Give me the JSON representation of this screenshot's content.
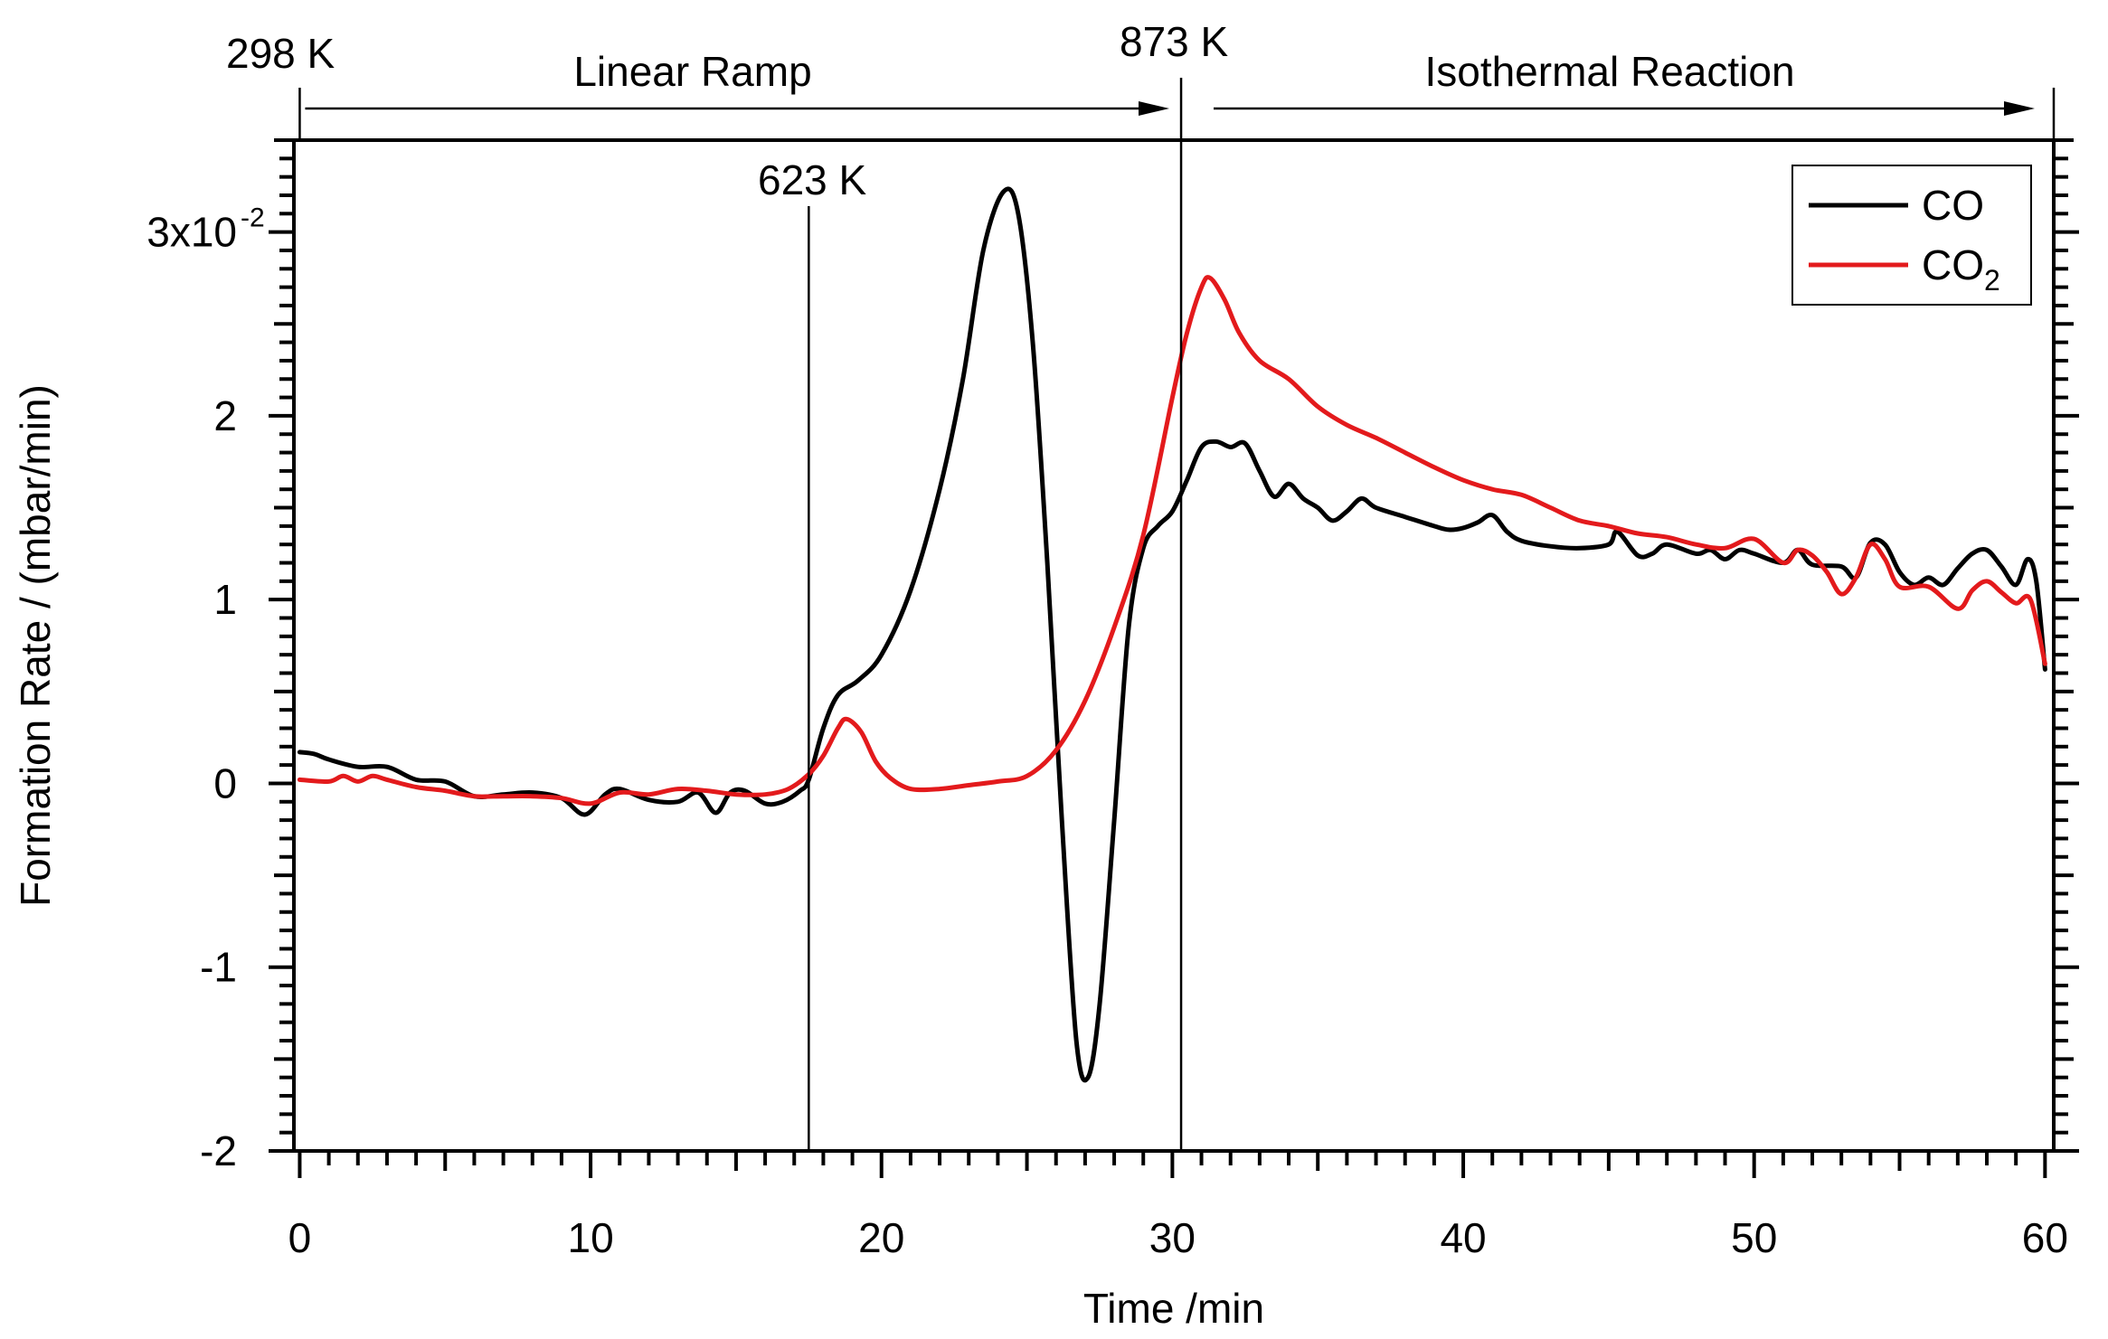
{
  "chart_data": {
    "type": "line",
    "xlabel": "Time /min",
    "ylabel": "Formation Rate / (mbar/min)",
    "xlim": [
      -0.2,
      60.3
    ],
    "ylim": [
      -0.02,
      0.035
    ],
    "x_ticks": [
      0,
      10,
      20,
      30,
      40,
      50,
      60
    ],
    "x_tick_labels": [
      "0",
      "10",
      "20",
      "30",
      "40",
      "50",
      "60"
    ],
    "y_ticks": [
      -0.02,
      -0.01,
      0,
      0.01,
      0.02,
      0.03
    ],
    "y_tick_labels": [
      "-2",
      "-1",
      "0",
      "1",
      "2",
      "3x10"
    ],
    "y_exponent": "-2",
    "annotations": {
      "start_temp": "298 K",
      "mid_temp": "623 K",
      "end_temp": "873 K",
      "ramp_label": "Linear Ramp",
      "iso_label": "Isothermal Reaction",
      "mid_time": 17.5,
      "end_time": 30.3
    },
    "legend": {
      "placement": "top-right",
      "entries": [
        {
          "name": "CO",
          "sub": "",
          "color": "#000000"
        },
        {
          "name": "CO",
          "sub": "2",
          "color": "#e31a1c"
        }
      ]
    },
    "series": [
      {
        "name": "CO",
        "color": "#000000",
        "points": [
          [
            0,
            0.0017
          ],
          [
            0.5,
            0.0016
          ],
          [
            1,
            0.0013
          ],
          [
            2,
            0.0009
          ],
          [
            3,
            0.0009
          ],
          [
            4,
            0.0002
          ],
          [
            5,
            0.0001
          ],
          [
            6,
            -0.0007
          ],
          [
            7,
            -0.0006
          ],
          [
            8,
            -0.0005
          ],
          [
            9,
            -0.0008
          ],
          [
            9.8,
            -0.0017
          ],
          [
            10.5,
            -0.0006
          ],
          [
            11,
            -0.0003
          ],
          [
            12,
            -0.0009
          ],
          [
            13,
            -0.001
          ],
          [
            13.7,
            -0.0005
          ],
          [
            14.3,
            -0.0016
          ],
          [
            14.8,
            -0.0005
          ],
          [
            15.3,
            -0.0004
          ],
          [
            16,
            -0.0011
          ],
          [
            16.6,
            -0.001
          ],
          [
            17.2,
            -0.0004
          ],
          [
            17.5,
            0.0002
          ],
          [
            18,
            0.003
          ],
          [
            18.5,
            0.0048
          ],
          [
            19.2,
            0.0056
          ],
          [
            20,
            0.007
          ],
          [
            21,
            0.0105
          ],
          [
            22,
            0.016
          ],
          [
            22.8,
            0.022
          ],
          [
            23.5,
            0.029
          ],
          [
            24.2,
            0.0322
          ],
          [
            24.7,
            0.031
          ],
          [
            25.2,
            0.024
          ],
          [
            25.7,
            0.012
          ],
          [
            26.2,
            -0.002
          ],
          [
            26.7,
            -0.014
          ],
          [
            27.1,
            -0.016
          ],
          [
            27.5,
            -0.012
          ],
          [
            28,
            -0.002
          ],
          [
            28.5,
            0.0085
          ],
          [
            29,
            0.0128
          ],
          [
            29.5,
            0.014
          ],
          [
            30,
            0.0148
          ],
          [
            30.5,
            0.0165
          ],
          [
            31,
            0.0183
          ],
          [
            31.5,
            0.0186
          ],
          [
            32,
            0.0183
          ],
          [
            32.5,
            0.0185
          ],
          [
            33,
            0.017
          ],
          [
            33.5,
            0.0156
          ],
          [
            34,
            0.0163
          ],
          [
            34.5,
            0.0155
          ],
          [
            35,
            0.015
          ],
          [
            35.5,
            0.0143
          ],
          [
            36,
            0.0148
          ],
          [
            36.5,
            0.0155
          ],
          [
            37,
            0.015
          ],
          [
            38,
            0.0145
          ],
          [
            39,
            0.014
          ],
          [
            39.5,
            0.0138
          ],
          [
            40,
            0.0139
          ],
          [
            40.5,
            0.0142
          ],
          [
            41,
            0.0146
          ],
          [
            41.5,
            0.0137
          ],
          [
            42,
            0.0132
          ],
          [
            43,
            0.0129
          ],
          [
            44,
            0.0128
          ],
          [
            45,
            0.013
          ],
          [
            45.3,
            0.0137
          ],
          [
            46,
            0.0124
          ],
          [
            46.5,
            0.0125
          ],
          [
            47,
            0.013
          ],
          [
            48,
            0.0125
          ],
          [
            48.5,
            0.0127
          ],
          [
            49,
            0.0122
          ],
          [
            49.5,
            0.0127
          ],
          [
            50,
            0.0125
          ],
          [
            51,
            0.012
          ],
          [
            51.5,
            0.0127
          ],
          [
            52,
            0.0119
          ],
          [
            53,
            0.0118
          ],
          [
            53.5,
            0.0112
          ],
          [
            54,
            0.0131
          ],
          [
            54.5,
            0.013
          ],
          [
            55,
            0.0115
          ],
          [
            55.5,
            0.0108
          ],
          [
            56,
            0.0112
          ],
          [
            56.5,
            0.0108
          ],
          [
            57,
            0.0117
          ],
          [
            57.5,
            0.0125
          ],
          [
            58,
            0.0127
          ],
          [
            58.5,
            0.0118
          ],
          [
            59,
            0.0108
          ],
          [
            59.4,
            0.0122
          ],
          [
            59.7,
            0.011
          ],
          [
            60,
            0.0062
          ]
        ]
      },
      {
        "name": "CO2",
        "color": "#e31a1c",
        "points": [
          [
            0,
            0.0002
          ],
          [
            1,
            0.0001
          ],
          [
            1.5,
            0.0004
          ],
          [
            2,
            0.0001
          ],
          [
            2.5,
            0.0004
          ],
          [
            3,
            0.0002
          ],
          [
            4,
            -0.0002
          ],
          [
            5,
            -0.0004
          ],
          [
            6,
            -0.0007
          ],
          [
            7,
            -0.0007
          ],
          [
            8,
            -0.0007
          ],
          [
            9,
            -0.0008
          ],
          [
            10,
            -0.0011
          ],
          [
            11,
            -0.0005
          ],
          [
            12,
            -0.0006
          ],
          [
            13,
            -0.0003
          ],
          [
            14,
            -0.0004
          ],
          [
            15,
            -0.0006
          ],
          [
            16,
            -0.0006
          ],
          [
            16.8,
            -0.0003
          ],
          [
            17.5,
            0.0005
          ],
          [
            18,
            0.0015
          ],
          [
            18.5,
            0.003
          ],
          [
            18.8,
            0.0035
          ],
          [
            19.3,
            0.0028
          ],
          [
            19.8,
            0.0012
          ],
          [
            20.3,
            0.0003
          ],
          [
            21,
            -0.0003
          ],
          [
            22,
            -0.0003
          ],
          [
            23,
            -0.0001
          ],
          [
            24,
            0.0001
          ],
          [
            25,
            0.0004
          ],
          [
            26,
            0.0018
          ],
          [
            27,
            0.0045
          ],
          [
            28,
            0.0085
          ],
          [
            29,
            0.0135
          ],
          [
            30,
            0.021
          ],
          [
            30.5,
            0.0245
          ],
          [
            31,
            0.027
          ],
          [
            31.3,
            0.0275
          ],
          [
            31.8,
            0.0263
          ],
          [
            32.3,
            0.0245
          ],
          [
            33,
            0.023
          ],
          [
            34,
            0.022
          ],
          [
            35,
            0.0205
          ],
          [
            36,
            0.0195
          ],
          [
            37,
            0.0188
          ],
          [
            38,
            0.018
          ],
          [
            39,
            0.0172
          ],
          [
            40,
            0.0165
          ],
          [
            41,
            0.016
          ],
          [
            42,
            0.0157
          ],
          [
            43,
            0.015
          ],
          [
            44,
            0.0143
          ],
          [
            45,
            0.014
          ],
          [
            46,
            0.0136
          ],
          [
            47,
            0.0134
          ],
          [
            48,
            0.013
          ],
          [
            49,
            0.0128
          ],
          [
            50,
            0.0133
          ],
          [
            51,
            0.012
          ],
          [
            51.5,
            0.0127
          ],
          [
            52,
            0.0124
          ],
          [
            52.5,
            0.0115
          ],
          [
            53,
            0.0103
          ],
          [
            53.5,
            0.0112
          ],
          [
            54,
            0.013
          ],
          [
            54.5,
            0.0122
          ],
          [
            55,
            0.0107
          ],
          [
            56,
            0.0107
          ],
          [
            57,
            0.0095
          ],
          [
            57.5,
            0.0105
          ],
          [
            58,
            0.011
          ],
          [
            58.5,
            0.0104
          ],
          [
            59,
            0.0098
          ],
          [
            59.5,
            0.01
          ],
          [
            60,
            0.0065
          ]
        ]
      }
    ]
  }
}
